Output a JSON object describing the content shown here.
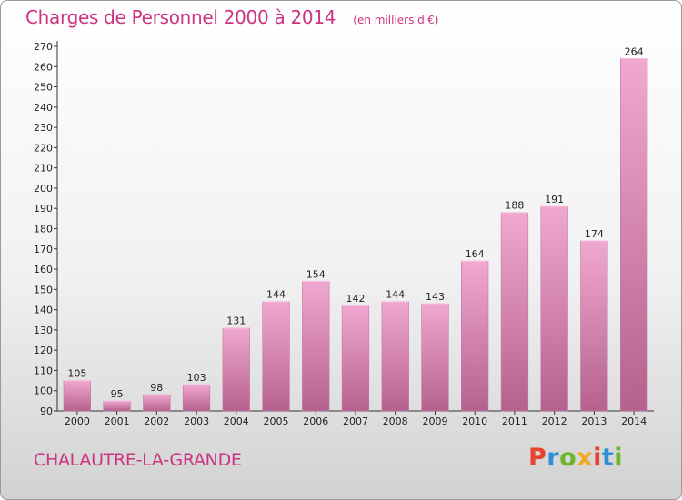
{
  "header": {
    "title": "Charges de Personnel 2000 à 2014",
    "unit_note": "(en milliers d'€)"
  },
  "footer": {
    "commune": "CHALAUTRE-LA-GRANDE",
    "logo_text": "Proxiti",
    "logo_colors": [
      "#e8432c",
      "#2f8fd6",
      "#6cb52d",
      "#f2a81c",
      "#e8432c",
      "#2f8fd6",
      "#6cb52d"
    ]
  },
  "colors": {
    "title": "#cc3382",
    "bar_top": "#f0a8d0",
    "bar_bottom": "#b5618f"
  },
  "chart_data": {
    "type": "bar",
    "categories": [
      "2000",
      "2001",
      "2002",
      "2003",
      "2004",
      "2005",
      "2006",
      "2007",
      "2008",
      "2009",
      "2010",
      "2011",
      "2012",
      "2013",
      "2014"
    ],
    "values": [
      105,
      95,
      98,
      103,
      131,
      144,
      154,
      142,
      144,
      143,
      164,
      188,
      191,
      174,
      264
    ],
    "ylim": [
      90,
      270
    ],
    "ytick_step": 10,
    "grid": false
  }
}
